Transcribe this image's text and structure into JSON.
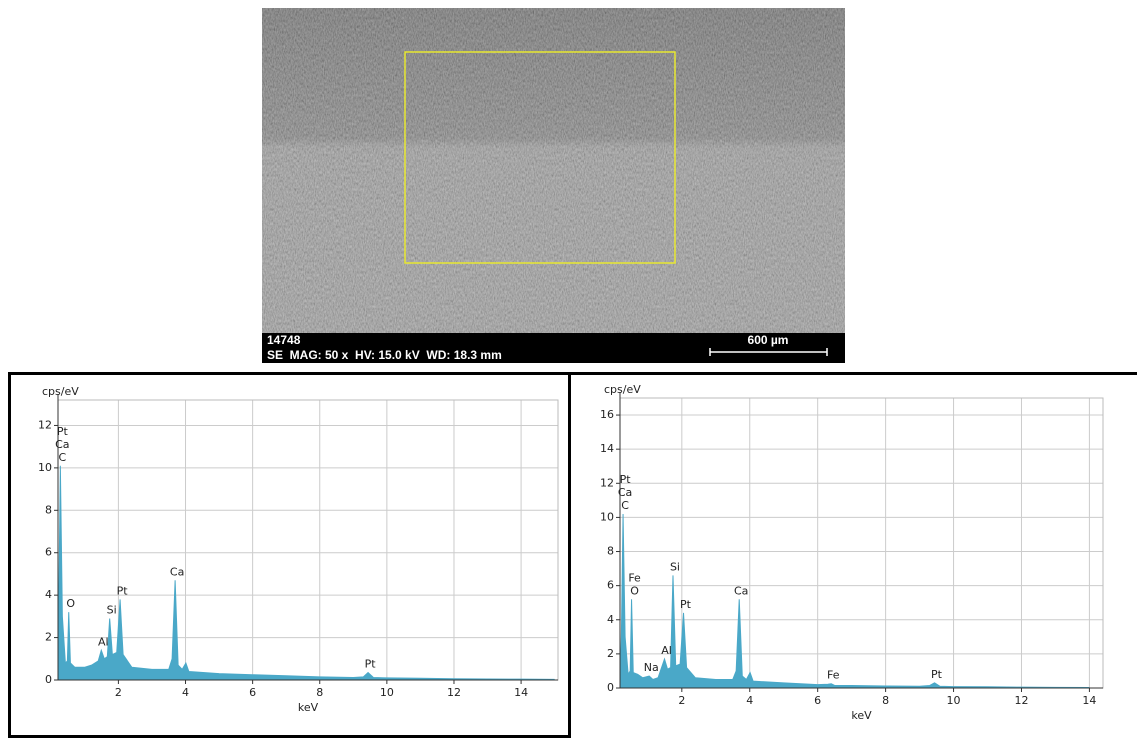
{
  "image": {
    "sample_id": "14748",
    "info": "SE  MAG: 50 x  HV: 15.0 kV  WD: 18.3 mm",
    "scale_bar": "600 µm"
  },
  "chart_data": [
    {
      "type": "area",
      "ylabel": "cps/eV",
      "xlabel": "keV",
      "color": "#4aa8c8",
      "grid": true,
      "xlim": [
        0.2,
        15.1
      ],
      "ylim": [
        0,
        13.2
      ],
      "xticks": [
        2,
        4,
        6,
        8,
        10,
        12,
        14
      ],
      "yticks": [
        0,
        2,
        4,
        6,
        8,
        10,
        12
      ],
      "x": [
        0.2,
        0.22,
        0.27,
        0.33,
        0.42,
        0.48,
        0.52,
        0.57,
        0.7,
        1.0,
        1.2,
        1.4,
        1.49,
        1.58,
        1.67,
        1.74,
        1.82,
        1.95,
        2.05,
        2.14,
        2.4,
        3.0,
        3.5,
        3.6,
        3.69,
        3.78,
        3.9,
        4.01,
        4.1,
        5,
        6,
        7,
        8,
        9,
        9.3,
        9.44,
        9.6,
        10,
        11,
        12,
        13,
        14,
        15
      ],
      "values": [
        0,
        3,
        10.1,
        3,
        0.8,
        0.9,
        3.2,
        0.8,
        0.6,
        0.6,
        0.7,
        0.9,
        1.4,
        1.0,
        1.1,
        2.9,
        1.2,
        1.3,
        3.8,
        1.2,
        0.6,
        0.5,
        0.5,
        1.0,
        4.7,
        0.7,
        0.5,
        0.8,
        0.4,
        0.3,
        0.25,
        0.2,
        0.15,
        0.12,
        0.15,
        0.35,
        0.12,
        0.1,
        0.08,
        0.06,
        0.05,
        0.04,
        0.03
      ],
      "peak_labels": [
        {
          "labels": [
            "Pt",
            "Ca",
            "C"
          ],
          "x": 0.27,
          "y": 10.1
        },
        {
          "labels": [
            "O"
          ],
          "x": 0.52,
          "y": 3.2
        },
        {
          "labels": [
            "Al"
          ],
          "x": 1.49,
          "y": 1.4
        },
        {
          "labels": [
            "Si"
          ],
          "x": 1.74,
          "y": 2.9
        },
        {
          "labels": [
            "Pt"
          ],
          "x": 2.05,
          "y": 3.8
        },
        {
          "labels": [
            "Ca"
          ],
          "x": 3.69,
          "y": 4.7
        },
        {
          "labels": [
            "Pt"
          ],
          "x": 9.44,
          "y": 0.35
        }
      ]
    },
    {
      "type": "area",
      "ylabel": "cps/eV",
      "xlabel": "keV",
      "color": "#4aa8c8",
      "grid": true,
      "xlim": [
        0.18,
        14.4
      ],
      "ylim": [
        0,
        17
      ],
      "xticks": [
        2,
        4,
        6,
        8,
        10,
        12,
        14
      ],
      "yticks": [
        0,
        2,
        4,
        6,
        8,
        10,
        12,
        14,
        16
      ],
      "x": [
        0.18,
        0.22,
        0.27,
        0.33,
        0.42,
        0.48,
        0.52,
        0.57,
        0.7,
        0.85,
        1.04,
        1.15,
        1.3,
        1.49,
        1.58,
        1.67,
        1.74,
        1.82,
        1.95,
        2.05,
        2.14,
        2.4,
        3.0,
        3.5,
        3.6,
        3.69,
        3.78,
        3.9,
        4.01,
        4.1,
        5,
        6,
        6.3,
        6.4,
        6.5,
        7,
        8,
        9,
        9.3,
        9.44,
        9.6,
        10,
        11,
        12,
        13,
        14
      ],
      "values": [
        0,
        3,
        10.2,
        3,
        0.8,
        1.0,
        5.2,
        0.9,
        0.8,
        0.6,
        0.7,
        0.5,
        0.6,
        1.7,
        1.1,
        1.2,
        6.6,
        1.3,
        1.4,
        4.4,
        1.2,
        0.6,
        0.5,
        0.5,
        1.0,
        5.2,
        0.7,
        0.5,
        0.9,
        0.4,
        0.3,
        0.2,
        0.22,
        0.25,
        0.15,
        0.15,
        0.12,
        0.1,
        0.15,
        0.3,
        0.1,
        0.08,
        0.07,
        0.05,
        0.04,
        0.03
      ],
      "peak_labels": [
        {
          "labels": [
            "Pt",
            "Ca",
            "C"
          ],
          "x": 0.27,
          "y": 10.2
        },
        {
          "labels": [
            "Fe",
            "O"
          ],
          "x": 0.55,
          "y": 5.2
        },
        {
          "labels": [
            "Na"
          ],
          "x": 1.04,
          "y": 0.7
        },
        {
          "labels": [
            "Al"
          ],
          "x": 1.49,
          "y": 1.7
        },
        {
          "labels": [
            "Si"
          ],
          "x": 1.74,
          "y": 6.6
        },
        {
          "labels": [
            "Pt"
          ],
          "x": 2.05,
          "y": 4.4
        },
        {
          "labels": [
            "Ca"
          ],
          "x": 3.69,
          "y": 5.2
        },
        {
          "labels": [
            "Fe"
          ],
          "x": 6.4,
          "y": 0.25
        },
        {
          "labels": [
            "Pt"
          ],
          "x": 9.44,
          "y": 0.3
        }
      ]
    }
  ]
}
